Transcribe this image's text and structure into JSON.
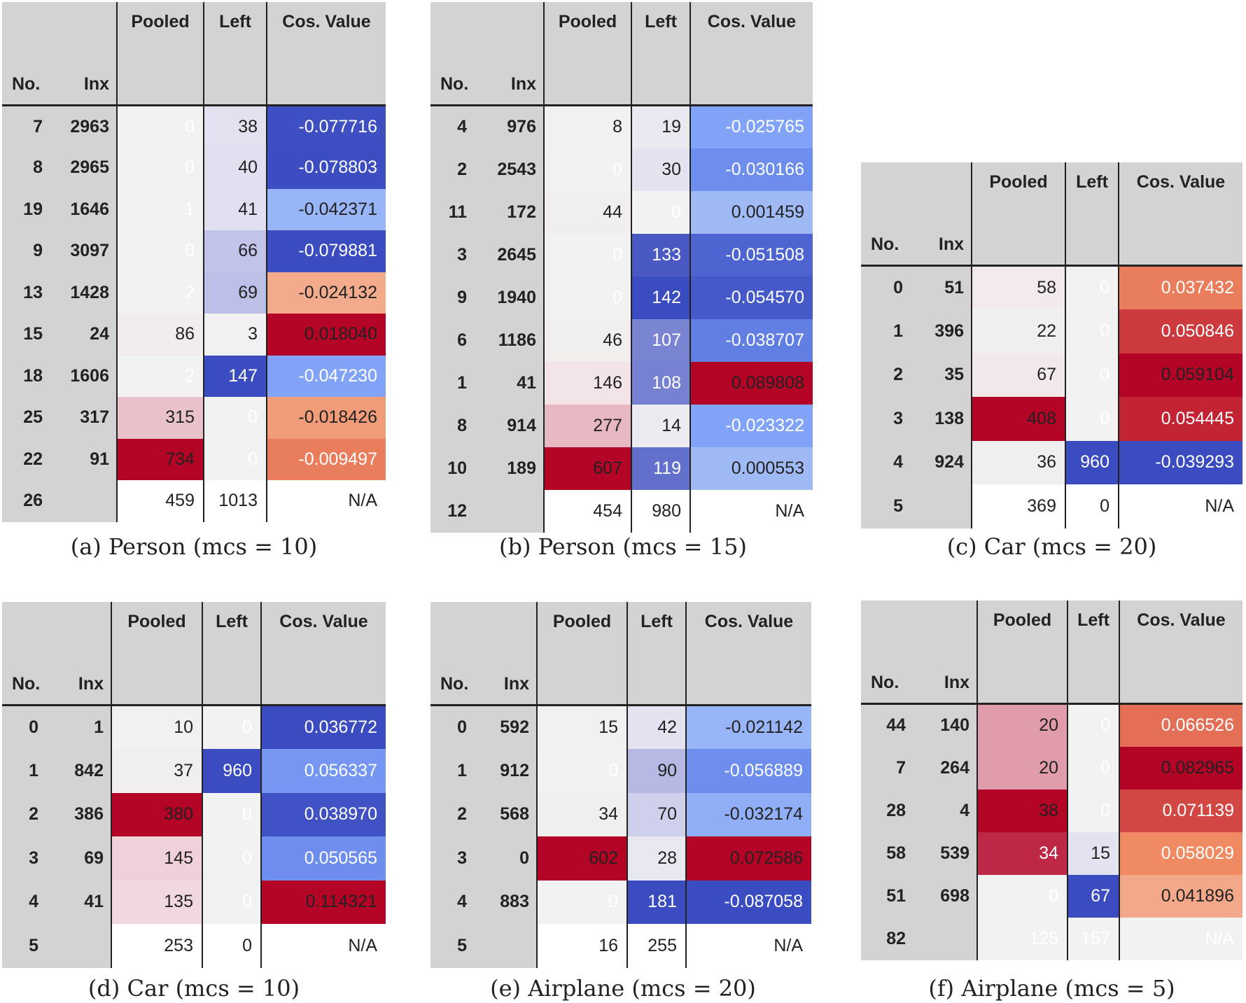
{
  "palette": {
    "neutral": "#f2f2f2",
    "blue_light": "#dcdcf0",
    "blue_mid": "#8e96d8",
    "blue_dark": "#3b4cc0",
    "red_light": "#f3e0e3",
    "red_mid": "#d5788c",
    "red_dark": "#b40426",
    "cos_blue_light": "#c4d5f3",
    "cos_blue_mid": "#7b9ff9",
    "cos_blue_dark": "#3b4cc0",
    "cos_red_light": "#f4c6af",
    "cos_red_mid": "#ef8a62",
    "cos_red_dark": "#b40426",
    "header_bg": "#d3d3d3"
  },
  "column_headers": {
    "no": "No.",
    "inx": "Inx",
    "pooled": "Pooled",
    "left": "Left",
    "cos": "Cos. Value"
  },
  "panels": [
    {
      "caption": "(a) Person (mcs = 10)",
      "rows": [
        {
          "no": "7",
          "inx": "2963",
          "pooled": "0",
          "left": "38",
          "cos": "-0.077716",
          "p": 0,
          "l": 0.26,
          "c": -0.98
        },
        {
          "no": "8",
          "inx": "2965",
          "pooled": "0",
          "left": "40",
          "cos": "-0.078803",
          "p": 0,
          "l": 0.27,
          "c": -0.99
        },
        {
          "no": "19",
          "inx": "1646",
          "pooled": "1",
          "left": "41",
          "cos": "-0.042371",
          "p": 0,
          "l": 0.28,
          "c": -0.3
        },
        {
          "no": "9",
          "inx": "3097",
          "pooled": "0",
          "left": "66",
          "cos": "-0.079881",
          "p": 0,
          "l": 0.45,
          "c": -1.0
        },
        {
          "no": "13",
          "inx": "1428",
          "pooled": "2",
          "left": "69",
          "cos": "-0.024132",
          "p": 0,
          "l": 0.47,
          "c": 0.22
        },
        {
          "no": "15",
          "inx": "24",
          "pooled": "86",
          "left": "3",
          "cos": "0.018040",
          "p": 0.12,
          "l": 0.02,
          "c": 1.0
        },
        {
          "no": "18",
          "inx": "1606",
          "pooled": "2",
          "left": "147",
          "cos": "-0.047230",
          "p": 0,
          "l": 1.0,
          "c": -0.45
        },
        {
          "no": "25",
          "inx": "317",
          "pooled": "315",
          "left": "0",
          "cos": "-0.018426",
          "p": 0.43,
          "l": 0,
          "c": 0.35
        },
        {
          "no": "22",
          "inx": "91",
          "pooled": "734",
          "left": "0",
          "cos": "-0.009497",
          "p": 1.0,
          "l": 0,
          "c": 0.55
        },
        {
          "no": "26",
          "inx": "",
          "pooled": "459",
          "left": "1013",
          "cos": "N/A",
          "last": true
        }
      ]
    },
    {
      "caption": "(b) Person (mcs = 15)",
      "rows": [
        {
          "no": "4",
          "inx": "976",
          "pooled": "8",
          "left": "19",
          "cos": "-0.025765",
          "p": 0.01,
          "l": 0.13,
          "c": -0.45
        },
        {
          "no": "2",
          "inx": "2543",
          "pooled": "0",
          "left": "30",
          "cos": "-0.030166",
          "p": 0,
          "l": 0.21,
          "c": -0.6
        },
        {
          "no": "11",
          "inx": "172",
          "pooled": "44",
          "left": "0",
          "cos": "0.001459",
          "p": 0.07,
          "l": 0,
          "c": -0.25
        },
        {
          "no": "3",
          "inx": "2645",
          "pooled": "0",
          "left": "133",
          "cos": "-0.051508",
          "p": 0,
          "l": 0.94,
          "c": -0.85
        },
        {
          "no": "9",
          "inx": "1940",
          "pooled": "0",
          "left": "142",
          "cos": "-0.054570",
          "p": 0,
          "l": 1.0,
          "c": -0.92
        },
        {
          "no": "6",
          "inx": "1186",
          "pooled": "46",
          "left": "107",
          "cos": "-0.038707",
          "p": 0.08,
          "l": 0.75,
          "c": -0.7
        },
        {
          "no": "1",
          "inx": "41",
          "pooled": "146",
          "left": "108",
          "cos": "0.089808",
          "p": 0.24,
          "l": 0.76,
          "c": 1.0
        },
        {
          "no": "8",
          "inx": "914",
          "pooled": "277",
          "left": "14",
          "cos": "-0.023322",
          "p": 0.46,
          "l": 0.1,
          "c": -0.45
        },
        {
          "no": "10",
          "inx": "189",
          "pooled": "607",
          "left": "119",
          "cos": "0.000553",
          "p": 1.0,
          "l": 0.84,
          "c": -0.25
        },
        {
          "no": "12",
          "inx": "",
          "pooled": "454",
          "left": "980",
          "cos": "N/A",
          "last": true
        }
      ]
    },
    {
      "caption": "(c) Car (mcs = 20)",
      "rows": [
        {
          "no": "0",
          "inx": "51",
          "pooled": "58",
          "left": "0",
          "cos": "0.037432",
          "p": 0.14,
          "l": 0,
          "c": 0.55
        },
        {
          "no": "1",
          "inx": "396",
          "pooled": "22",
          "left": "0",
          "cos": "0.050846",
          "p": 0.05,
          "l": 0,
          "c": 0.8
        },
        {
          "no": "2",
          "inx": "35",
          "pooled": "67",
          "left": "0",
          "cos": "0.059104",
          "p": 0.16,
          "l": 0,
          "c": 1.0
        },
        {
          "no": "3",
          "inx": "138",
          "pooled": "408",
          "left": "0",
          "cos": "0.054445",
          "p": 1.0,
          "l": 0,
          "c": 0.88
        },
        {
          "no": "4",
          "inx": "924",
          "pooled": "36",
          "left": "960",
          "cos": "-0.039293",
          "p": 0.09,
          "l": 1.0,
          "c": -1.0
        },
        {
          "no": "5",
          "inx": "",
          "pooled": "369",
          "left": "0",
          "cos": "N/A",
          "last": true
        }
      ]
    },
    {
      "caption": "(d) Car (mcs = 10)",
      "rows": [
        {
          "no": "0",
          "inx": "1",
          "pooled": "10",
          "left": "0",
          "cos": "0.036772",
          "p": 0.03,
          "l": 0,
          "c": -1.0
        },
        {
          "no": "1",
          "inx": "842",
          "pooled": "37",
          "left": "960",
          "cos": "0.056337",
          "p": 0.1,
          "l": 1.0,
          "c": -0.55
        },
        {
          "no": "2",
          "inx": "386",
          "pooled": "380",
          "left": "0",
          "cos": "0.038970",
          "p": 1.0,
          "l": 0,
          "c": -0.97
        },
        {
          "no": "3",
          "inx": "69",
          "pooled": "145",
          "left": "0",
          "cos": "0.050565",
          "p": 0.38,
          "l": 0,
          "c": -0.6
        },
        {
          "no": "4",
          "inx": "41",
          "pooled": "135",
          "left": "0",
          "cos": "0.114321",
          "p": 0.36,
          "l": 0,
          "c": 1.0
        },
        {
          "no": "5",
          "inx": "",
          "pooled": "253",
          "left": "0",
          "cos": "N/A",
          "last": true
        }
      ]
    },
    {
      "caption": "(e) Airplane (mcs = 20)",
      "rows": [
        {
          "no": "0",
          "inx": "592",
          "pooled": "15",
          "left": "42",
          "cos": "-0.021142",
          "p": 0.02,
          "l": 0.23,
          "c": -0.3
        },
        {
          "no": "1",
          "inx": "912",
          "pooled": "0",
          "left": "90",
          "cos": "-0.056889",
          "p": 0,
          "l": 0.5,
          "c": -0.6
        },
        {
          "no": "2",
          "inx": "568",
          "pooled": "34",
          "left": "70",
          "cos": "-0.032174",
          "p": 0.06,
          "l": 0.39,
          "c": -0.35
        },
        {
          "no": "3",
          "inx": "0",
          "pooled": "602",
          "left": "28",
          "cos": "0.072586",
          "p": 1.0,
          "l": 0.15,
          "c": 1.0
        },
        {
          "no": "4",
          "inx": "883",
          "pooled": "0",
          "left": "181",
          "cos": "-0.087058",
          "p": 0,
          "l": 1.0,
          "c": -1.0
        },
        {
          "no": "5",
          "inx": "",
          "pooled": "16",
          "left": "255",
          "cos": "N/A",
          "last": true
        }
      ]
    },
    {
      "caption": "(f) Airplane (mcs = 5)",
      "rows": [
        {
          "no": "44",
          "inx": "140",
          "pooled": "20",
          "left": "0",
          "cos": "0.066526",
          "p": 0.55,
          "l": 0,
          "c": 0.6
        },
        {
          "no": "7",
          "inx": "264",
          "pooled": "20",
          "left": "0",
          "cos": "0.082965",
          "p": 0.55,
          "l": 0,
          "c": 1.0
        },
        {
          "no": "28",
          "inx": "4",
          "pooled": "38",
          "left": "0",
          "cos": "0.071139",
          "p": 1.0,
          "l": 0,
          "c": 0.75
        },
        {
          "no": "58",
          "inx": "539",
          "pooled": "34",
          "left": "15",
          "cos": "0.058029",
          "p": 0.9,
          "l": 0.22,
          "c": 0.5
        },
        {
          "no": "51",
          "inx": "698",
          "pooled": "0",
          "left": "67",
          "cos": "0.041896",
          "p": 0,
          "l": 1.0,
          "c": 0.25
        },
        {
          "no": "82",
          "inx": "",
          "pooled": "125",
          "left": "157",
          "cos": "N/A",
          "last": true,
          "lastbg": "neutral"
        }
      ]
    }
  ]
}
